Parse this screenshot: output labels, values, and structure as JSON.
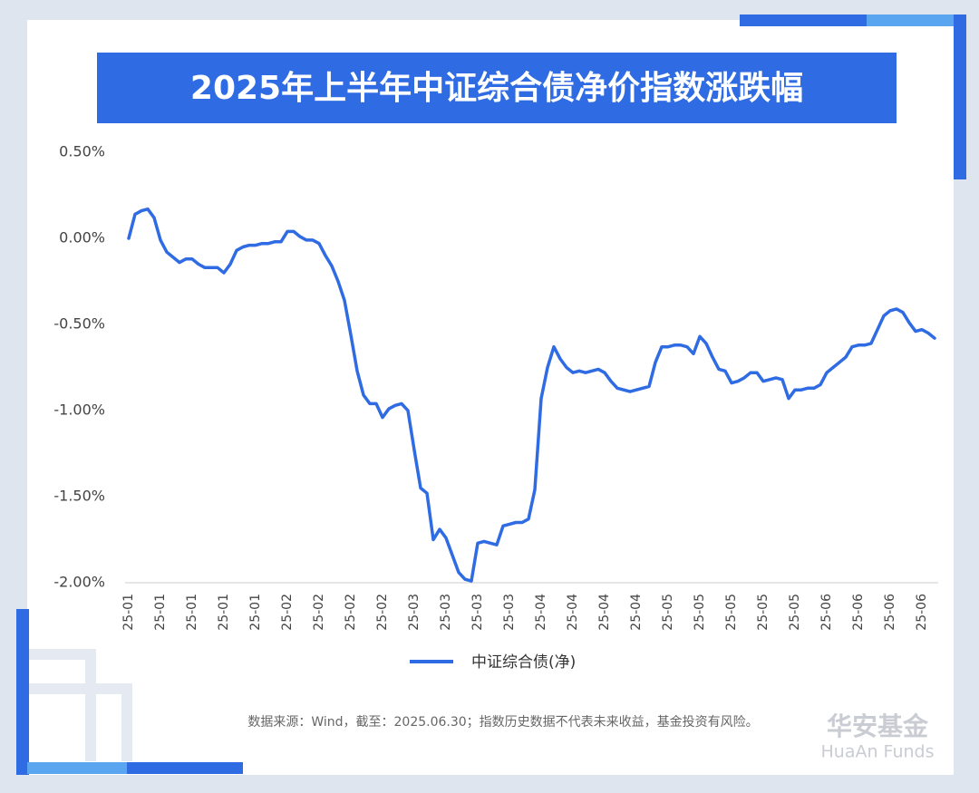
{
  "chart_data": {
    "type": "line",
    "title": "2025年上半年中证综合债净价指数涨跌幅",
    "categories": [
      "25-01",
      null,
      null,
      null,
      null,
      "25-01",
      null,
      null,
      null,
      null,
      "25-01",
      null,
      null,
      null,
      null,
      "25-01",
      null,
      null,
      null,
      null,
      "25-01",
      null,
      null,
      null,
      null,
      "25-02",
      null,
      null,
      null,
      null,
      "25-02",
      null,
      null,
      null,
      null,
      "25-02",
      null,
      null,
      null,
      null,
      "25-02",
      null,
      null,
      null,
      null,
      "25-03",
      null,
      null,
      null,
      null,
      "25-03",
      null,
      null,
      null,
      null,
      "25-03",
      null,
      null,
      null,
      null,
      "25-03",
      null,
      null,
      null,
      null,
      "25-04",
      null,
      null,
      null,
      null,
      "25-04",
      null,
      null,
      null,
      null,
      "25-04",
      null,
      null,
      null,
      null,
      "25-04",
      null,
      null,
      null,
      null,
      "25-05",
      null,
      null,
      null,
      null,
      "25-05",
      null,
      null,
      null,
      null,
      "25-05",
      null,
      null,
      null,
      null,
      "25-05",
      null,
      null,
      null,
      null,
      "25-05",
      null,
      null,
      null,
      null,
      "25-06",
      null,
      null,
      null,
      null,
      "25-06",
      null,
      null,
      null,
      null,
      "25-06",
      null,
      null,
      null,
      null,
      "25-06",
      null,
      null
    ],
    "series": [
      {
        "name": "中证综合债(净)",
        "color": "#2f6be3",
        "values": [
          0.0,
          0.14,
          0.16,
          0.17,
          0.12,
          -0.01,
          -0.08,
          -0.11,
          -0.14,
          -0.12,
          -0.12,
          -0.15,
          -0.17,
          -0.17,
          -0.17,
          -0.2,
          -0.15,
          -0.07,
          -0.05,
          -0.04,
          -0.04,
          -0.03,
          -0.03,
          -0.02,
          -0.02,
          0.04,
          0.04,
          0.01,
          -0.01,
          -0.01,
          -0.03,
          -0.1,
          -0.16,
          -0.25,
          -0.36,
          -0.56,
          -0.77,
          -0.91,
          -0.96,
          -0.96,
          -1.04,
          -0.99,
          -0.97,
          -0.96,
          -1.0,
          -1.23,
          -1.45,
          -1.48,
          -1.75,
          -1.69,
          -1.74,
          -1.84,
          -1.94,
          -1.98,
          -1.99,
          -1.77,
          -1.76,
          -1.77,
          -1.78,
          -1.67,
          -1.66,
          -1.65,
          -1.65,
          -1.63,
          -1.46,
          -0.93,
          -0.75,
          -0.63,
          -0.7,
          -0.75,
          -0.78,
          -0.77,
          -0.78,
          -0.77,
          -0.76,
          -0.78,
          -0.83,
          -0.87,
          -0.88,
          -0.89,
          -0.88,
          -0.87,
          -0.86,
          -0.72,
          -0.63,
          -0.63,
          -0.62,
          -0.62,
          -0.63,
          -0.67,
          -0.57,
          -0.61,
          -0.69,
          -0.76,
          -0.77,
          -0.84,
          -0.83,
          -0.81,
          -0.78,
          -0.78,
          -0.83,
          -0.82,
          -0.81,
          -0.82,
          -0.93,
          -0.88,
          -0.88,
          -0.87,
          -0.87,
          -0.85,
          -0.78,
          -0.75,
          -0.72,
          -0.69,
          -0.63,
          -0.62,
          -0.62,
          -0.61,
          -0.53,
          -0.45,
          -0.42,
          -0.41,
          -0.43,
          -0.49,
          -0.54,
          -0.53,
          -0.55,
          -0.58
        ]
      }
    ],
    "ylim": [
      -2,
      0.5
    ],
    "yticks": [
      {
        "value": -2,
        "label": "-2.00%"
      },
      {
        "value": -1.5,
        "label": "-1.50%"
      },
      {
        "value": -1,
        "label": "-1.00%"
      },
      {
        "value": -0.5,
        "label": "-0.50%"
      },
      {
        "value": 0,
        "label": "0.00%"
      },
      {
        "value": 0.5,
        "label": "0.50%"
      }
    ],
    "grid": false,
    "legend": "bottom",
    "footnote": "数据来源：Wind，截至：2025.06.30；指数历史数据不代表未来收益，基金投资有风险。"
  },
  "logo": {
    "name": "华安基金",
    "name_en": "HuaAn Funds"
  }
}
